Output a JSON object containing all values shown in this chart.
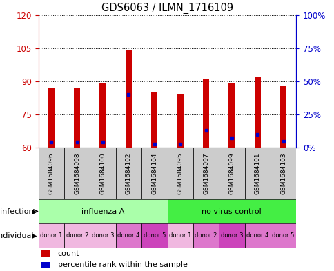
{
  "title": "GDS6063 / ILMN_1716109",
  "samples": [
    "GSM1684096",
    "GSM1684098",
    "GSM1684100",
    "GSM1684102",
    "GSM1684104",
    "GSM1684095",
    "GSM1684097",
    "GSM1684099",
    "GSM1684101",
    "GSM1684103"
  ],
  "red_values": [
    87.0,
    87.0,
    89.0,
    104.0,
    85.0,
    84.0,
    91.0,
    89.0,
    92.0,
    88.0
  ],
  "blue_values": [
    62.5,
    62.5,
    62.5,
    84.0,
    61.5,
    61.5,
    68.0,
    64.5,
    66.0,
    63.0
  ],
  "y_min": 60,
  "y_max": 120,
  "y_ticks": [
    60,
    75,
    90,
    105,
    120
  ],
  "y2_tick_labels": [
    "0%",
    "25%",
    "50%",
    "75%",
    "100%"
  ],
  "infection_groups": [
    {
      "label": "influenza A",
      "start": 0,
      "end": 5,
      "color": "#aaffaa"
    },
    {
      "label": "no virus control",
      "start": 5,
      "end": 10,
      "color": "#44ee44"
    }
  ],
  "individual_labels": [
    "donor 1",
    "donor 2",
    "donor 3",
    "donor 4",
    "donor 5",
    "donor 1",
    "donor 2",
    "donor 3",
    "donor 4",
    "donor 5"
  ],
  "individual_colors": [
    "#f0b8e0",
    "#f0b8e0",
    "#f0b8e0",
    "#dd77cc",
    "#cc44bb",
    "#f0b8e0",
    "#dd77cc",
    "#cc44bb",
    "#dd77cc",
    "#dd77cc"
  ],
  "bar_color": "#cc0000",
  "blue_color": "#0000cc",
  "axis_color_left": "#cc0000",
  "axis_color_right": "#0000cc",
  "infection_label": "infection",
  "individual_label": "individual",
  "bar_width": 0.25,
  "sample_box_color": "#cccccc"
}
